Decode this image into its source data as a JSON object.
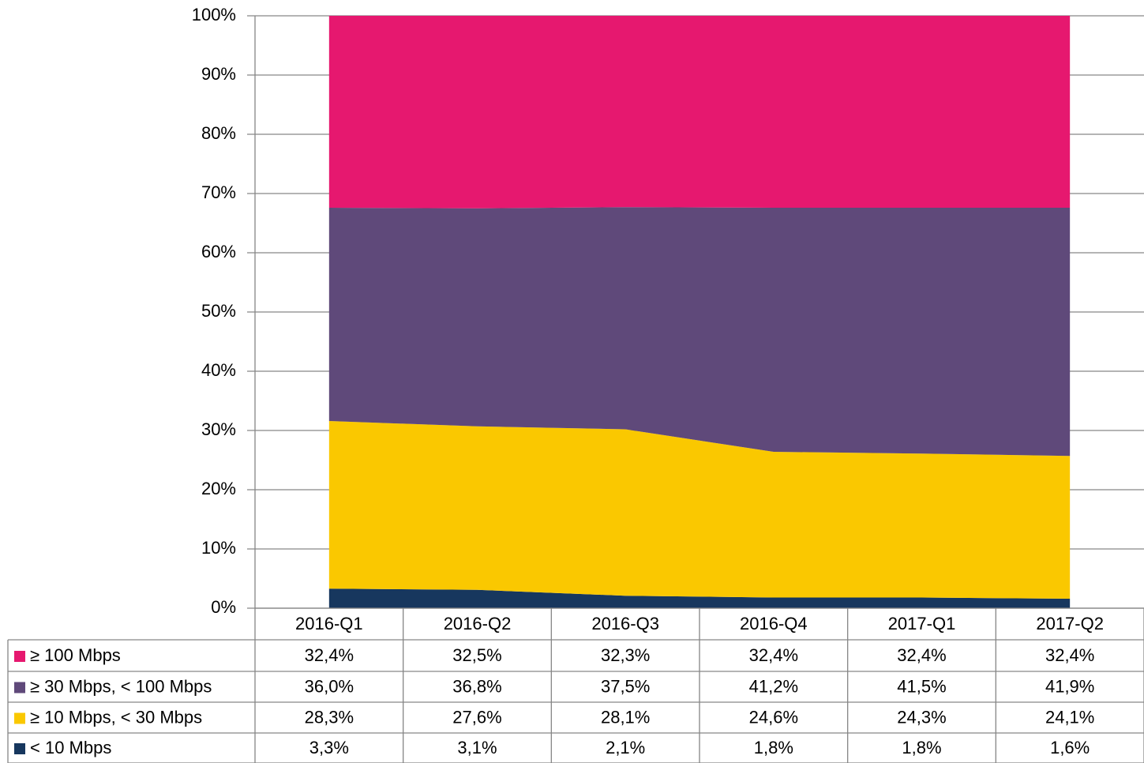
{
  "chart_data": {
    "type": "stacked_area",
    "categories": [
      "2016-Q1",
      "2016-Q2",
      "2016-Q3",
      "2016-Q4",
      "2017-Q1",
      "2017-Q2"
    ],
    "series": [
      {
        "name": "≥ 100 Mbps",
        "color": "#E6186F",
        "values": [
          32.4,
          32.5,
          32.3,
          32.4,
          32.4,
          32.4
        ],
        "value_labels": [
          "32,4%",
          "32,5%",
          "32,3%",
          "32,4%",
          "32,4%",
          "32,4%"
        ]
      },
      {
        "name": "≥ 30 Mbps, < 100 Mbps",
        "color": "#5F497A",
        "values": [
          36.0,
          36.8,
          37.5,
          41.2,
          41.5,
          41.9
        ],
        "value_labels": [
          "36,0%",
          "36,8%",
          "37,5%",
          "41,2%",
          "41,5%",
          "41,9%"
        ]
      },
      {
        "name": "≥ 10 Mbps, < 30 Mbps",
        "color": "#FAC800",
        "values": [
          28.3,
          27.6,
          28.1,
          24.6,
          24.3,
          24.1
        ],
        "value_labels": [
          "28,3%",
          "27,6%",
          "28,1%",
          "24,6%",
          "24,3%",
          "24,1%"
        ]
      },
      {
        "name": "< 10 Mbps",
        "color": "#17375E",
        "values": [
          3.3,
          3.1,
          2.1,
          1.8,
          1.8,
          1.6
        ],
        "value_labels": [
          "3,3%",
          "3,1%",
          "2,1%",
          "1,8%",
          "1,8%",
          "1,6%"
        ]
      }
    ],
    "ylim": [
      0,
      100
    ],
    "yticks": [
      {
        "value": 0,
        "label": "0%"
      },
      {
        "value": 10,
        "label": "10%"
      },
      {
        "value": 20,
        "label": "20%"
      },
      {
        "value": 30,
        "label": "30%"
      },
      {
        "value": 40,
        "label": "40%"
      },
      {
        "value": 50,
        "label": "50%"
      },
      {
        "value": 60,
        "label": "60%"
      },
      {
        "value": 70,
        "label": "70%"
      },
      {
        "value": 80,
        "label": "80%"
      },
      {
        "value": 90,
        "label": "90%"
      },
      {
        "value": 100,
        "label": "100%"
      }
    ],
    "grid": true
  }
}
